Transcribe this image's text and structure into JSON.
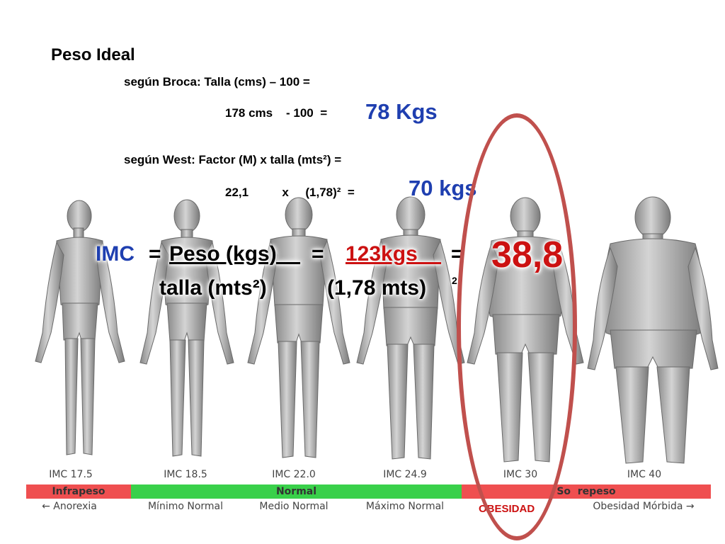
{
  "title": "Peso Ideal",
  "broca": {
    "line": "según Broca: Talla (cms) – 100 =",
    "calc": "178 cms    - 100  =",
    "result": "78 Kgs"
  },
  "west": {
    "line": "según West:  Factor (M) x talla (mts²) =",
    "calc": "22,1          x     (1,78)²  =",
    "result": "70 kgs"
  },
  "imc_formula": {
    "label": "IMC",
    "eq1": "=",
    "peso": "Peso (kgs)    ",
    "eq2": "=",
    "kgs": "123kgs    ",
    "eq3": "=",
    "result": "38,8",
    "talla": "talla (mts²)",
    "mts": "(1,78 mts)",
    "mts_exp": "2"
  },
  "bmi_scale": {
    "values": [
      "IMC 17.5",
      "IMC 18.5",
      "IMC 22.0",
      "IMC 24.9",
      "IMC 30",
      "IMC 40"
    ],
    "categories": [
      "Infrapeso",
      "Normal",
      "So  repeso"
    ],
    "sublabels": [
      "← Anorexia",
      "Mínimo Normal",
      "Medio Normal",
      "Máximo Normal",
      "Obesidad Mórbida →"
    ],
    "highlight": "OBESIDAD"
  },
  "colors": {
    "blue_text": "#1f3fb0",
    "red_text": "#cc1111",
    "bar_red": "#ef4f50",
    "bar_green": "#39d04a",
    "ellipse": "#c0504d"
  }
}
